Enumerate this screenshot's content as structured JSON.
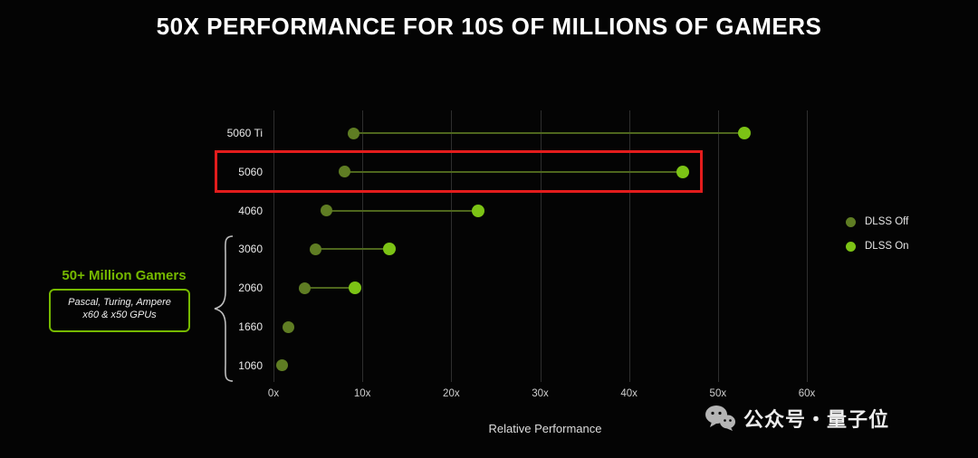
{
  "title": "50X PERFORMANCE FOR 10S OF MILLIONS OF GAMERS",
  "chart_data": {
    "type": "scatter",
    "subtype": "dumbbell",
    "categories": [
      "5060 Ti",
      "5060",
      "4060",
      "3060",
      "2060",
      "1660",
      "1060"
    ],
    "series": [
      {
        "name": "DLSS Off",
        "values": [
          9,
          8,
          6,
          4.7,
          3.5,
          1.7,
          1
        ]
      },
      {
        "name": "DLSS On",
        "values": [
          53,
          46,
          23,
          13,
          9.2,
          null,
          null
        ]
      }
    ],
    "xlabel": "Relative Performance",
    "x_ticks": [
      "0x",
      "10x",
      "20x",
      "30x",
      "40x",
      "50x",
      "60x"
    ],
    "xlim": [
      0,
      60
    ],
    "grid": "vertical",
    "legend_position": "right",
    "highlight_category": "5060",
    "colors": {
      "dlss_off": "#5f7d23",
      "dlss_on": "#7cc315",
      "connector": "#4e661d",
      "highlight_border": "#e31c1c",
      "accent_green": "#76b900"
    }
  },
  "legend": {
    "off_label": "DLSS Off",
    "on_label": "DLSS On"
  },
  "annotation": {
    "heading": "50+ Million Gamers",
    "box_line1": "Pascal, Turing, Ampere",
    "box_line2": "x60 & x50 GPUs"
  },
  "watermark": {
    "text": "公众号・量子位"
  }
}
